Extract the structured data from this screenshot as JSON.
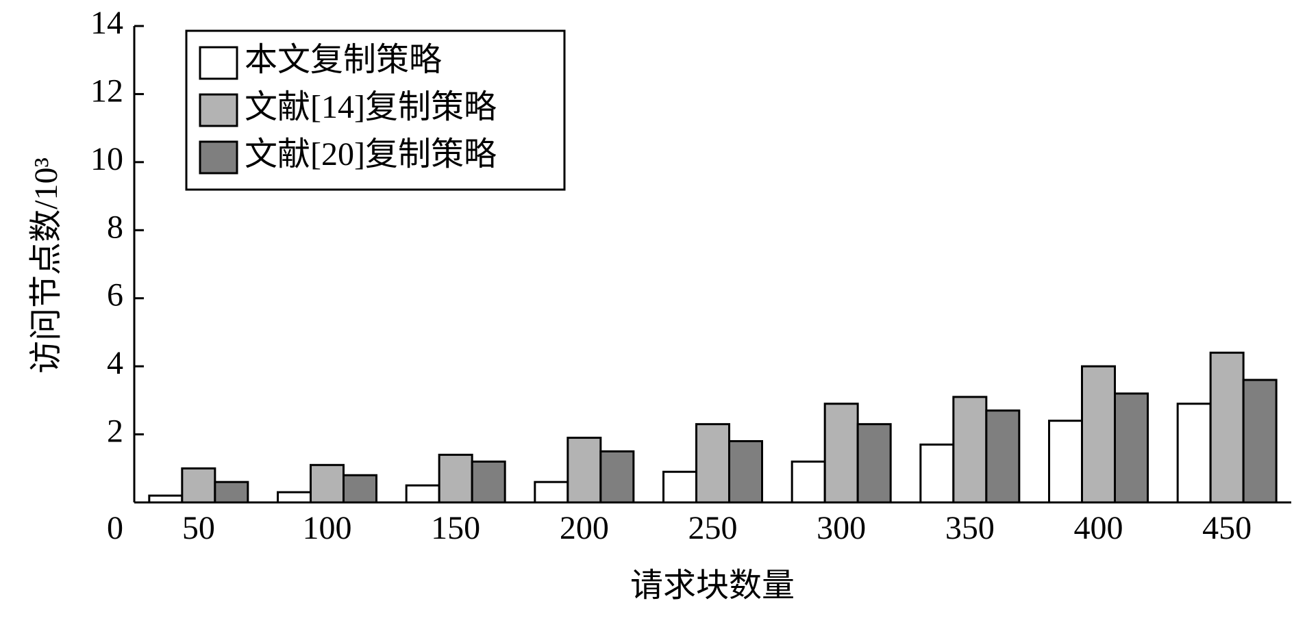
{
  "chart_data": {
    "type": "bar",
    "x_label": "请求块数量",
    "y_label": "访问节点数/10³",
    "categories": [
      "50",
      "100",
      "150",
      "200",
      "250",
      "300",
      "350",
      "400",
      "450"
    ],
    "series": [
      {
        "name": "本文复制策略",
        "color": "#ffffff",
        "values": [
          0.2,
          0.3,
          0.5,
          0.6,
          0.9,
          1.2,
          1.7,
          2.4,
          2.9
        ]
      },
      {
        "name": "文献[14]复制策略",
        "color": "#b3b3b3",
        "values": [
          1.0,
          1.1,
          1.4,
          1.9,
          2.3,
          2.9,
          3.1,
          4.0,
          4.4
        ]
      },
      {
        "name": "文献[20]复制策略",
        "color": "#7f7f7f",
        "values": [
          0.6,
          0.8,
          1.2,
          1.5,
          1.8,
          2.3,
          2.7,
          3.2,
          3.6
        ]
      }
    ],
    "ylim": [
      0,
      14
    ],
    "yticks": [
      0,
      2,
      4,
      6,
      8,
      10,
      12,
      14
    ],
    "legend": "upper left",
    "grid": false
  }
}
